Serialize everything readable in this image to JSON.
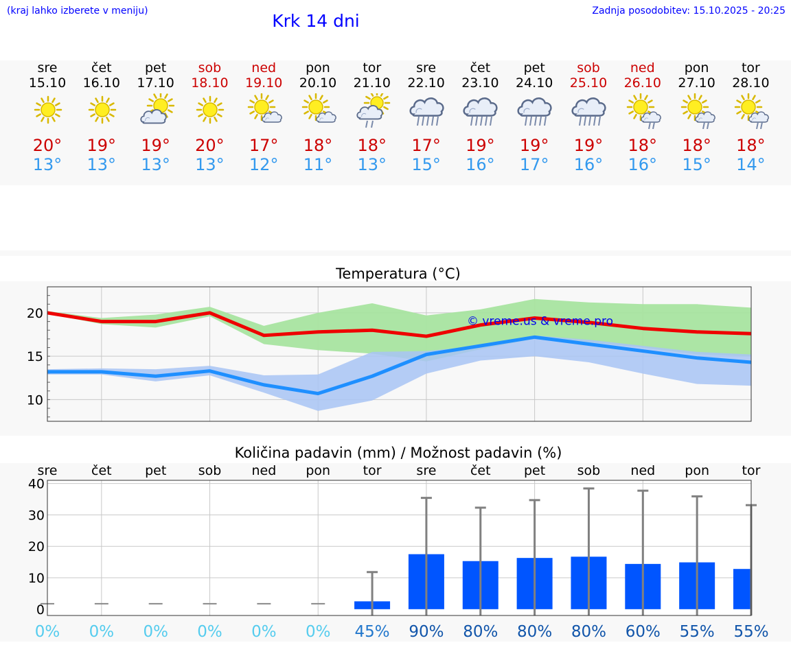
{
  "header": {
    "hint": "(kraj lahko izberete v meniju)",
    "title": "Krk 14 dni",
    "updated": "Zadnja posodobitev: 15.10.2025 - 20:25"
  },
  "days": [
    {
      "name": "sre",
      "date": "15.10",
      "weekend": false,
      "icon": "sun-icon",
      "max": "20°",
      "min": "13°"
    },
    {
      "name": "čet",
      "date": "16.10",
      "weekend": false,
      "icon": "sun-icon",
      "max": "19°",
      "min": "13°"
    },
    {
      "name": "pet",
      "date": "17.10",
      "weekend": false,
      "icon": "sun-cloud-icon",
      "max": "19°",
      "min": "13°"
    },
    {
      "name": "sob",
      "date": "18.10",
      "weekend": true,
      "icon": "sun-icon",
      "max": "20°",
      "min": "13°"
    },
    {
      "name": "ned",
      "date": "19.10",
      "weekend": true,
      "icon": "sun-small-cloud-icon",
      "max": "17°",
      "min": "12°"
    },
    {
      "name": "pon",
      "date": "20.10",
      "weekend": false,
      "icon": "sun-small-cloud-icon",
      "max": "18°",
      "min": "11°"
    },
    {
      "name": "tor",
      "date": "21.10",
      "weekend": false,
      "icon": "sun-cloud-rain-icon",
      "max": "18°",
      "min": "13°"
    },
    {
      "name": "sre",
      "date": "22.10",
      "weekend": false,
      "icon": "cloud-heavy-rain-icon",
      "max": "17°",
      "min": "15°"
    },
    {
      "name": "čet",
      "date": "23.10",
      "weekend": false,
      "icon": "cloud-heavy-rain-icon",
      "max": "19°",
      "min": "16°"
    },
    {
      "name": "pet",
      "date": "24.10",
      "weekend": false,
      "icon": "cloud-heavy-rain-icon",
      "max": "19°",
      "min": "17°"
    },
    {
      "name": "sob",
      "date": "25.10",
      "weekend": true,
      "icon": "cloud-heavy-rain-icon",
      "max": "19°",
      "min": "16°"
    },
    {
      "name": "ned",
      "date": "26.10",
      "weekend": true,
      "icon": "sun-cloud-light-rain-icon",
      "max": "18°",
      "min": "16°"
    },
    {
      "name": "pon",
      "date": "27.10",
      "weekend": false,
      "icon": "sun-cloud-light-rain-icon",
      "max": "18°",
      "min": "15°"
    },
    {
      "name": "tor",
      "date": "28.10",
      "weekend": false,
      "icon": "sun-cloud-light-rain-icon",
      "max": "18°",
      "min": "14°"
    }
  ],
  "colors": {
    "max": "#cc0000",
    "min": "#3399ee",
    "weekend": "#cc0000",
    "max_line": "#ee0000",
    "min_line": "#1e8fff",
    "max_band": "#a8e4a0",
    "min_band": "#a8c4f4",
    "bar": "#0055ff"
  },
  "chart_data": [
    {
      "type": "line",
      "title": "Temperatura (°C)",
      "watermark": "© vreme.us & vreme.pro",
      "ylim": [
        7.5,
        23
      ],
      "yticks": [
        10,
        15,
        20
      ],
      "grid": true,
      "series": [
        {
          "values": [
            20.0,
            19.0,
            19.0,
            20.0,
            17.4,
            17.8,
            18.0,
            17.3,
            18.6,
            19.4,
            18.9,
            18.2,
            17.8,
            17.6
          ]
        },
        {
          "values": [
            13.2,
            13.2,
            12.7,
            13.3,
            11.7,
            10.7,
            12.7,
            15.2,
            16.2,
            17.2,
            16.4,
            15.6,
            14.8,
            14.3
          ]
        }
      ],
      "bands": [
        {
          "low": [
            19.9,
            18.7,
            18.3,
            19.6,
            16.4,
            15.7,
            15.3,
            14.4,
            15.8,
            17.0,
            16.6,
            16.0,
            15.2,
            15.0
          ],
          "high": [
            20.2,
            19.4,
            19.8,
            20.7,
            18.5,
            20.0,
            21.1,
            19.7,
            20.4,
            21.6,
            21.2,
            21.0,
            21.0,
            20.6
          ]
        },
        {
          "low": [
            12.9,
            12.9,
            12.1,
            12.8,
            10.8,
            8.7,
            9.9,
            13.0,
            14.5,
            15.0,
            14.3,
            13.0,
            11.8,
            11.6
          ],
          "high": [
            13.5,
            13.6,
            13.5,
            13.9,
            12.8,
            12.9,
            15.5,
            15.6,
            16.2,
            17.4,
            16.9,
            16.2,
            15.5,
            15.2
          ]
        }
      ]
    },
    {
      "type": "bar",
      "title": "Količina padavin (mm) / Možnost padavin (%)",
      "categories": [
        "sre",
        "čet",
        "pet",
        "sob",
        "ned",
        "pon",
        "tor",
        "sre",
        "čet",
        "pet",
        "sob",
        "ned",
        "pon",
        "tor"
      ],
      "values": [
        0,
        0,
        0,
        0,
        0,
        0,
        2.5,
        17.5,
        15.3,
        16.3,
        16.7,
        14.4,
        14.9,
        12.8
      ],
      "max_values": [
        0,
        0,
        0,
        0,
        0,
        0,
        11.8,
        35.4,
        32.3,
        34.7,
        38.4,
        37.7,
        35.9,
        33.1
      ],
      "ylim": [
        -2,
        41
      ],
      "yticks": [
        0,
        10,
        20,
        30,
        40
      ],
      "probabilities": [
        "0%",
        "0%",
        "0%",
        "0%",
        "0%",
        "0%",
        "45%",
        "90%",
        "80%",
        "80%",
        "80%",
        "60%",
        "55%",
        "55%"
      ],
      "grid": true
    }
  ]
}
